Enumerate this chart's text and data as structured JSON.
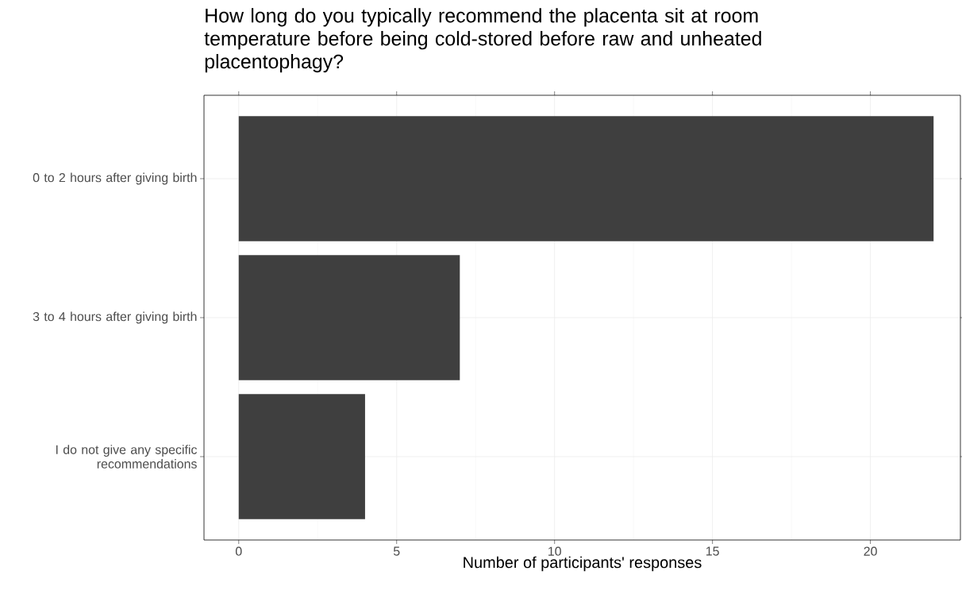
{
  "chart_data": {
    "type": "bar",
    "orientation": "horizontal",
    "title": "How long do you typically recommend the placenta sit at room temperature before being cold-stored before raw and unheated placentophagy?",
    "xlabel": "Number of participants' responses",
    "categories": [
      "0 to 2 hours after giving birth",
      "3 to 4 hours after giving birth",
      "I do not give any specific recommendations"
    ],
    "values": [
      22,
      7,
      4
    ],
    "color": "#3f3f3f",
    "xlim": [
      -1.1,
      22.85
    ],
    "xticks": [
      0,
      5,
      10,
      15,
      20
    ],
    "grid": true
  }
}
